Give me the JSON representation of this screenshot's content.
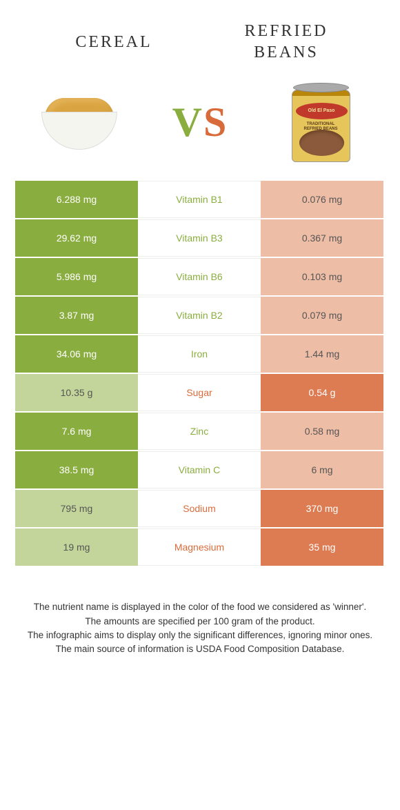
{
  "header": {
    "left_title": "CEREAL",
    "right_title": "REFRIED BEANS",
    "vs_v": "V",
    "vs_s": "S",
    "can_brand": "Old El Paso",
    "can_line1": "TRADITIONAL",
    "can_line2": "REFRIED BEANS"
  },
  "colors": {
    "green": "#8aad3f",
    "orange": "#dd7c52",
    "light_green": "#c3d59a",
    "light_orange": "#eebda6",
    "green_text": "#8aad3f",
    "orange_text": "#d96b3a"
  },
  "rows": [
    {
      "left": "6.288 mg",
      "mid": "Vitamin B1",
      "right": "0.076 mg",
      "winner": "left"
    },
    {
      "left": "29.62 mg",
      "mid": "Vitamin B3",
      "right": "0.367 mg",
      "winner": "left"
    },
    {
      "left": "5.986 mg",
      "mid": "Vitamin B6",
      "right": "0.103 mg",
      "winner": "left"
    },
    {
      "left": "3.87 mg",
      "mid": "Vitamin B2",
      "right": "0.079 mg",
      "winner": "left"
    },
    {
      "left": "34.06 mg",
      "mid": "Iron",
      "right": "1.44 mg",
      "winner": "left"
    },
    {
      "left": "10.35 g",
      "mid": "Sugar",
      "right": "0.54 g",
      "winner": "right"
    },
    {
      "left": "7.6 mg",
      "mid": "Zinc",
      "right": "0.58 mg",
      "winner": "left"
    },
    {
      "left": "38.5 mg",
      "mid": "Vitamin C",
      "right": "6 mg",
      "winner": "left"
    },
    {
      "left": "795 mg",
      "mid": "Sodium",
      "right": "370 mg",
      "winner": "right"
    },
    {
      "left": "19 mg",
      "mid": "Magnesium",
      "right": "35 mg",
      "winner": "right"
    }
  ],
  "footer": {
    "line1": "The nutrient name is displayed in the color of the food we considered as 'winner'.",
    "line2": "The amounts are specified per 100 gram of the product.",
    "line3": "The infographic aims to display only the significant differences, ignoring minor ones.",
    "line4": "The main source of information is USDA Food Composition Database."
  }
}
